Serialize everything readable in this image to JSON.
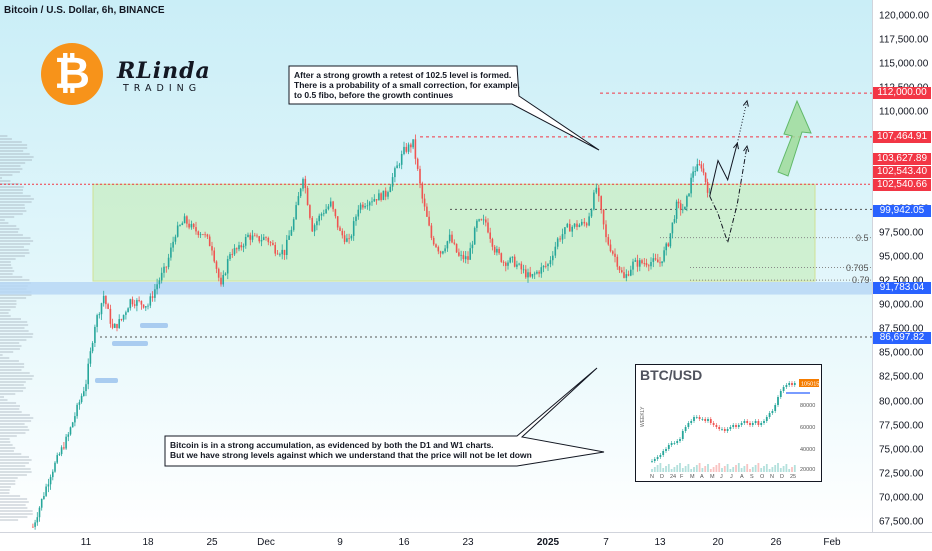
{
  "title": "Bitcoin / U.S. Dollar, 6h, BINANCE",
  "brand": {
    "name": "RLinda",
    "subtitle": "TRADING",
    "logo_icon": "bitcoin-logo-icon"
  },
  "colors": {
    "up": "#26a69a",
    "down": "#ef5350",
    "label_red": "#f23645",
    "label_blue": "#2962ff",
    "range": "#c8eec0",
    "support": "#b7d7f5"
  },
  "annotations": {
    "top": [
      "After a strong growth a retest of 102.5 level is formed.",
      "There is a probability of a small correction, for example,",
      "to 0.5 fibo, before the growth continues"
    ],
    "bottom": [
      "Bitcoin is in a strong accumulation, as evidenced by both the D1 and W1 charts.",
      "But we have strong levels against which we understand that the price will not be let down"
    ]
  },
  "fib_labels": [
    "0.5",
    "0.705",
    "0.79"
  ],
  "price_labels": [
    {
      "value": "112,000.00",
      "color": "#f23645"
    },
    {
      "value": "107,464.91",
      "color": "#f23645"
    },
    {
      "value": "103,627.89",
      "color": "#f23645"
    },
    {
      "value": "102,543.40",
      "color": "#f23645"
    },
    {
      "value": "102,540.66",
      "color": "#f23645"
    },
    {
      "value": "99,942.05",
      "color": "#2962ff"
    },
    {
      "value": "91,783.04",
      "color": "#2962ff"
    },
    {
      "value": "86,697.82",
      "color": "#2962ff"
    }
  ],
  "inset": {
    "title": "BTC/USD",
    "side_label": "WEEKLY",
    "ylabels": [
      "80000",
      "60000",
      "40000",
      "20000"
    ],
    "xlabels": [
      "N",
      "D",
      "24",
      "F",
      "M",
      "A",
      "M",
      "J",
      "J",
      "A",
      "S",
      "O",
      "N",
      "D",
      "25"
    ],
    "price_tag": "105015"
  },
  "chart_data": {
    "type": "candlestick",
    "title": "Bitcoin / U.S. Dollar, 6h, BINANCE",
    "y_ticks": [
      "120,000.00",
      "117,500.00",
      "115,000.00",
      "112,500.00",
      "110,000.00",
      "107,500.00",
      "105,000.00",
      "102,500.00",
      "100,000.00",
      "97,500.00",
      "95,000.00",
      "92,500.00",
      "90,000.00",
      "87,500.00",
      "85,000.00",
      "82,500.00",
      "80,000.00",
      "77,500.00",
      "75,000.00",
      "72,500.00",
      "70,000.00",
      "67,500.00"
    ],
    "y_tick_values": [
      120000,
      117500,
      115000,
      112500,
      110000,
      107500,
      105000,
      102500,
      100000,
      97500,
      95000,
      92500,
      90000,
      87500,
      85000,
      82500,
      80000,
      77500,
      75000,
      72500,
      70000,
      67500
    ],
    "x_ticks": [
      "11",
      "18",
      "25",
      "Dec",
      "9",
      "16",
      "23",
      "2025",
      "7",
      "13",
      "20",
      "26",
      "Feb"
    ],
    "ylim": [
      66700,
      121200
    ],
    "levels": [
      112000,
      107464.91,
      103627.89,
      102543.4,
      102540.66,
      99942.05,
      91783.04,
      86697.82
    ],
    "fib_levels": {
      "0.5": 97000,
      "0.705": 93900,
      "0.79": 92600
    },
    "range_zone": [
      92500,
      102540.66
    ],
    "support_zone": [
      91100,
      92400
    ],
    "trend_path": [
      [
        "11-05",
        67000
      ],
      [
        "11-07",
        72500
      ],
      [
        "11-09",
        76500
      ],
      [
        "11-11",
        82000
      ],
      [
        "11-12",
        88000
      ],
      [
        "11-13",
        91000
      ],
      [
        "11-14",
        87500
      ],
      [
        "11-15",
        88500
      ],
      [
        "11-16",
        90500
      ],
      [
        "11-18",
        90000
      ],
      [
        "11-19",
        92200
      ],
      [
        "11-20",
        94000
      ],
      [
        "11-21",
        97500
      ],
      [
        "11-22",
        98800
      ],
      [
        "11-23",
        97800
      ],
      [
        "11-24",
        97500
      ],
      [
        "11-25",
        96000
      ],
      [
        "11-26",
        91800
      ],
      [
        "11-27",
        95500
      ],
      [
        "11-28",
        95800
      ],
      [
        "11-29",
        97200
      ],
      [
        "11-30",
        96800
      ],
      [
        "12-01",
        97000
      ],
      [
        "12-02",
        95800
      ],
      [
        "12-03",
        95500
      ],
      [
        "12-04",
        98800
      ],
      [
        "12-05",
        103500
      ],
      [
        "12-06",
        98000
      ],
      [
        "12-07",
        99500
      ],
      [
        "12-08",
        100500
      ],
      [
        "12-09",
        97500
      ],
      [
        "12-10",
        96500
      ],
      [
        "12-11",
        100200
      ],
      [
        "12-12",
        100800
      ],
      [
        "12-13",
        101200
      ],
      [
        "12-14",
        101500
      ],
      [
        "12-15",
        103800
      ],
      [
        "12-16",
        106000
      ],
      [
        "12-17",
        106800
      ],
      [
        "12-18",
        101000
      ],
      [
        "12-19",
        97000
      ],
      [
        "12-20",
        95500
      ],
      [
        "12-21",
        97000
      ],
      [
        "12-22",
        95000
      ],
      [
        "12-23",
        94800
      ],
      [
        "12-24",
        98500
      ],
      [
        "12-25",
        98600
      ],
      [
        "12-26",
        95800
      ],
      [
        "12-27",
        94500
      ],
      [
        "12-28",
        94600
      ],
      [
        "12-29",
        93700
      ],
      [
        "12-30",
        92800
      ],
      [
        "12-31",
        93600
      ],
      [
        "01-01",
        94200
      ],
      [
        "01-02",
        96800
      ],
      [
        "01-03",
        98000
      ],
      [
        "01-04",
        98300
      ],
      [
        "01-05",
        98500
      ],
      [
        "01-06",
        102200
      ],
      [
        "01-07",
        96900
      ],
      [
        "01-08",
        95000
      ],
      [
        "01-09",
        92700
      ],
      [
        "01-10",
        94300
      ],
      [
        "01-11",
        94400
      ],
      [
        "01-12",
        94500
      ],
      [
        "01-13",
        94400
      ],
      [
        "01-14",
        96500
      ],
      [
        "01-15",
        100300
      ],
      [
        "01-16",
        99900
      ],
      [
        "01-17",
        104000
      ],
      [
        "01-18",
        104500
      ],
      [
        "01-19",
        101300
      ]
    ],
    "forecast_paths": [
      {
        "style": "solid",
        "points": [
          [
            "01-19",
            101300
          ],
          [
            "01-20",
            105000
          ],
          [
            "01-21",
            103000
          ],
          [
            "01-22",
            106800
          ]
        ]
      },
      {
        "style": "dotted",
        "points": [
          [
            "01-22",
            106800
          ],
          [
            "01-23",
            111200
          ]
        ]
      },
      {
        "style": "dash-dot",
        "points": [
          [
            "01-19",
            101300
          ],
          [
            "01-20",
            99500
          ],
          [
            "01-21",
            96500
          ],
          [
            "01-22",
            100500
          ],
          [
            "01-23",
            106500
          ]
        ]
      }
    ]
  }
}
